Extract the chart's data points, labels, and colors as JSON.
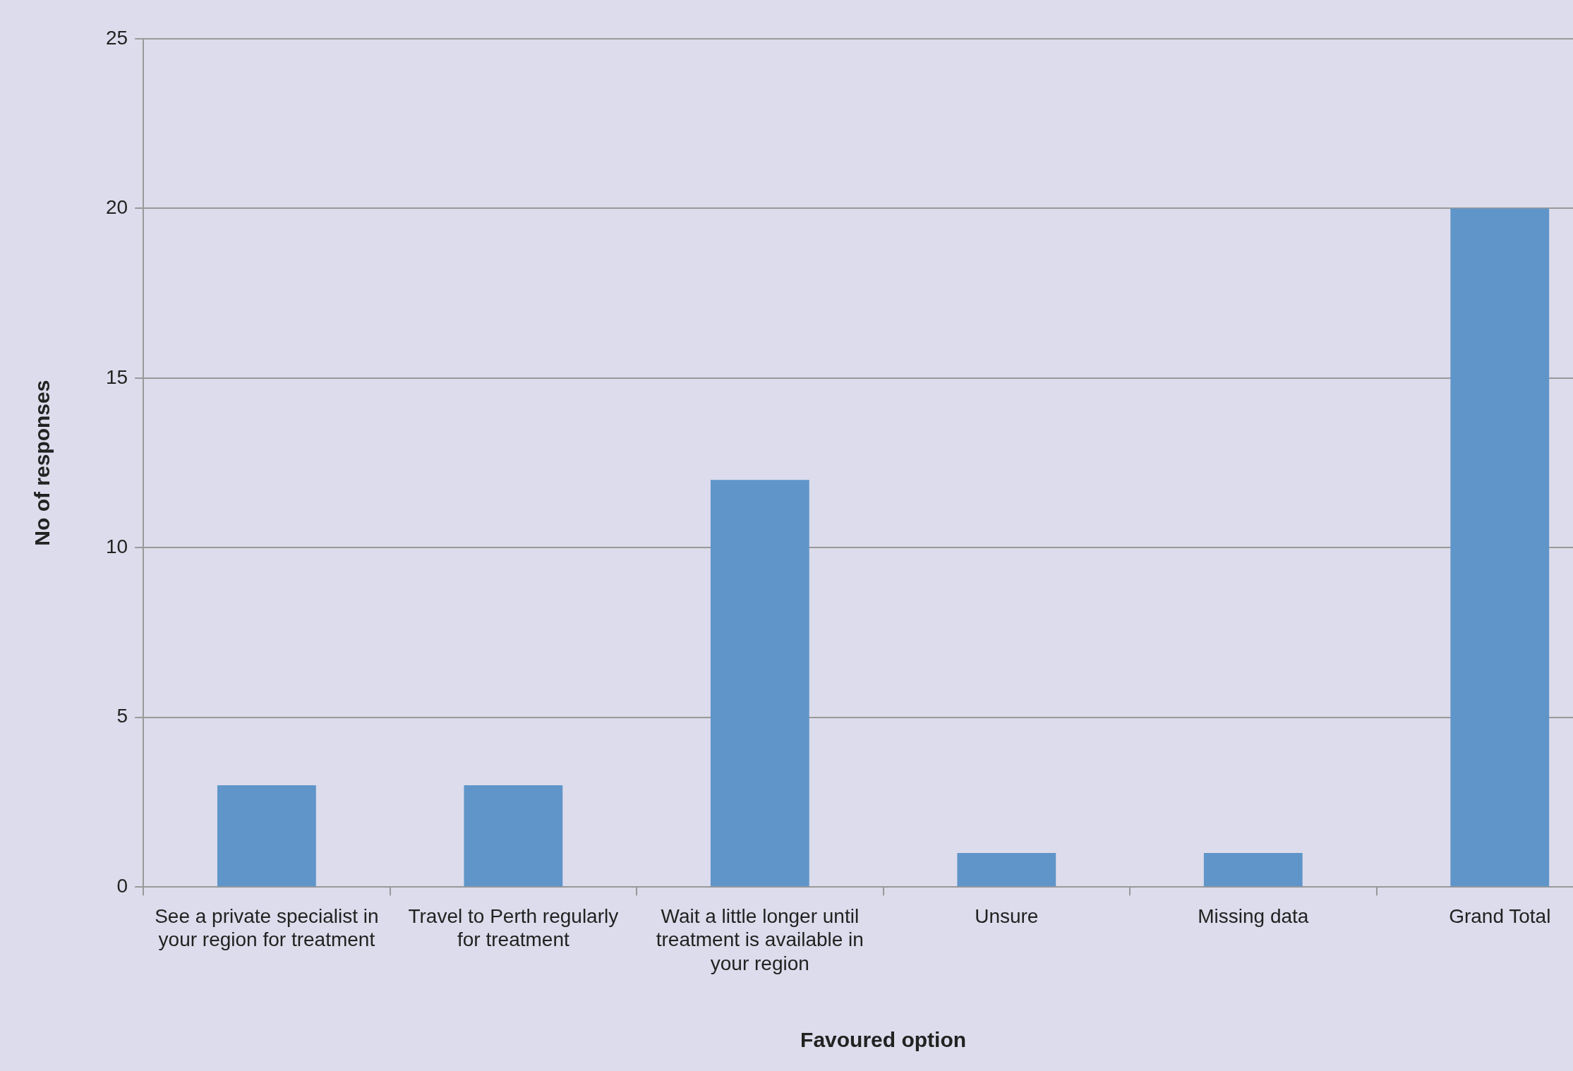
{
  "chart_data": {
    "type": "bar",
    "categories": [
      "See a private specialist in your region for treatment",
      "Travel to Perth regularly for treatment",
      "Wait a little longer until treatment is available in your region",
      "Unsure",
      "Missing data",
      "Grand Total"
    ],
    "values": [
      3,
      3,
      12,
      1,
      1,
      20
    ],
    "color": "#5f95c9",
    "xlabel": "Favoured option",
    "ylabel": "No of responses",
    "ylim": [
      0,
      25
    ],
    "yticks": [
      0,
      5,
      10,
      15,
      20,
      25
    ],
    "grid": "y",
    "legend": false
  }
}
